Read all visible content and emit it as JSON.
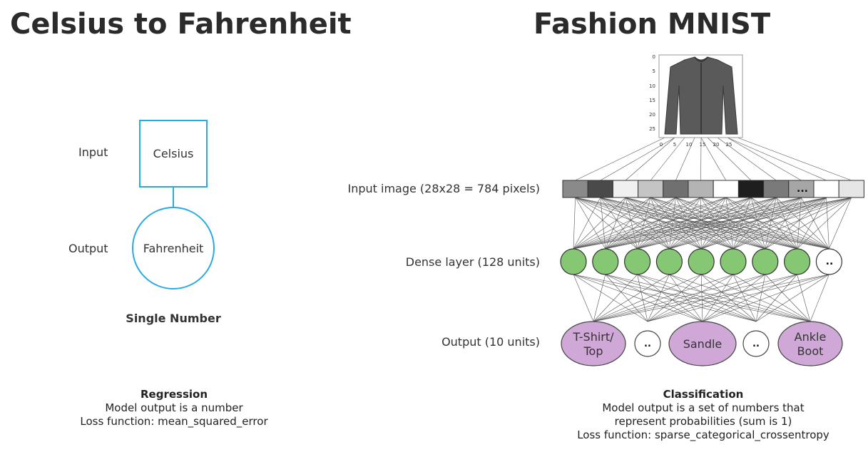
{
  "titles": {
    "left": "Celsius to Fahrenheit",
    "right": "Fashion MNIST"
  },
  "regression_diagram": {
    "input_label": "Input",
    "output_label": "Output",
    "input_node": "Celsius",
    "output_node": "Fahrenheit",
    "caption": "Single Number",
    "node_color": "#29ABE2"
  },
  "classification_diagram": {
    "image_ticks_y": [
      "0",
      "5",
      "10",
      "15",
      "20",
      "25"
    ],
    "image_ticks_x": [
      "0",
      "5",
      "10",
      "15",
      "20",
      "25"
    ],
    "image_icon": "shirt-icon",
    "input_layer_label": "Input image (28x28 = 784 pixels)",
    "dense_layer_label": "Dense layer (128 units)",
    "output_layer_label": "Output (10 units)",
    "pixel_ellipsis": "...",
    "dense_ellipsis": "..",
    "pixel_shades": [
      "#8a8a8a",
      "#4a4a4a",
      "#f0f0f0",
      "#c4c4c4",
      "#707070",
      "#b4b4b4",
      "#ffffff",
      "#1e1e1e",
      "#7a7a7a",
      "#a6a6a6",
      "#ffffff",
      "#e6e6e6"
    ],
    "dense_color": "#86C774",
    "output_color": "#D0A8D8",
    "output_nodes": [
      {
        "label_line1": "T-Shirt/",
        "label_line2": "Top",
        "kind": "class"
      },
      {
        "label_line1": "..",
        "label_line2": "",
        "kind": "ellipsis"
      },
      {
        "label_line1": "Sandle",
        "label_line2": "",
        "kind": "class"
      },
      {
        "label_line1": "..",
        "label_line2": "",
        "kind": "ellipsis"
      },
      {
        "label_line1": "Ankle",
        "label_line2": "Boot",
        "kind": "class"
      }
    ]
  },
  "captions": {
    "regression": {
      "title": "Regression",
      "lines": [
        "Model output is a number",
        "Loss function: mean_squared_error"
      ]
    },
    "classification": {
      "title": "Classification",
      "lines": [
        "Model output is a set of numbers that",
        "represent probabilities (sum is 1)",
        "Loss function: sparse_categorical_crossentropy"
      ]
    }
  }
}
